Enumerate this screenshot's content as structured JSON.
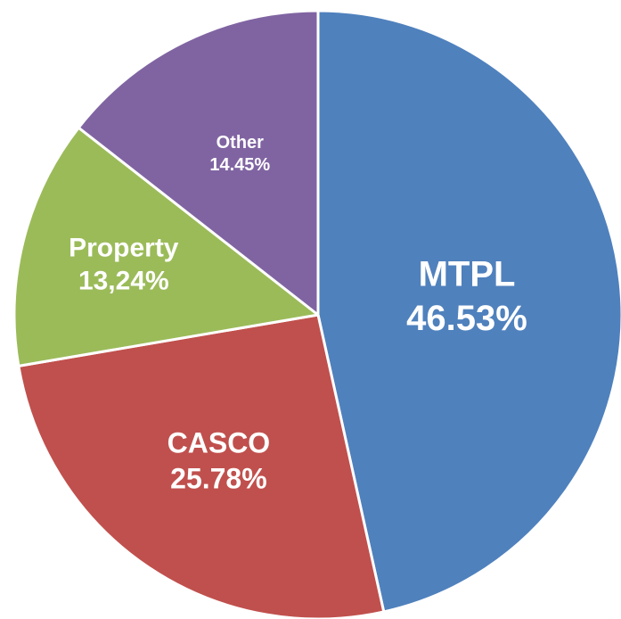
{
  "chart_data": {
    "type": "pie",
    "categories": [
      "MTPL",
      "CASCO",
      "Property",
      "Other"
    ],
    "values": [
      46.53,
      25.78,
      13.24,
      14.45
    ],
    "value_labels": [
      "46.53%",
      "25.78%",
      "13,24%",
      "14.45%"
    ],
    "colors": [
      "#4f81bd",
      "#c0504d",
      "#9bbb59",
      "#8064a2"
    ]
  }
}
